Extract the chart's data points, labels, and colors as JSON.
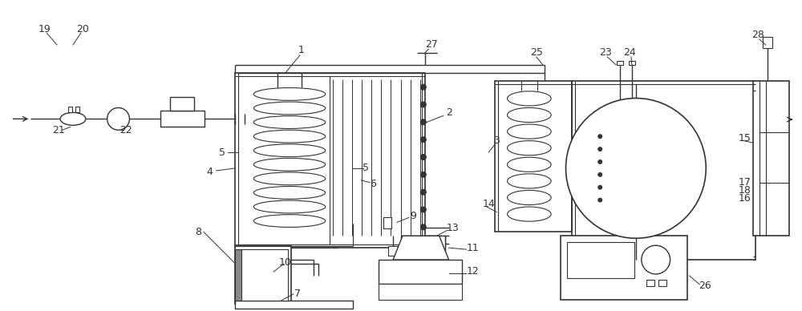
{
  "bg_color": "#ffffff",
  "lc": "#333333",
  "lw": 1.0,
  "figw": 10.0,
  "figh": 3.88,
  "dpi": 100
}
